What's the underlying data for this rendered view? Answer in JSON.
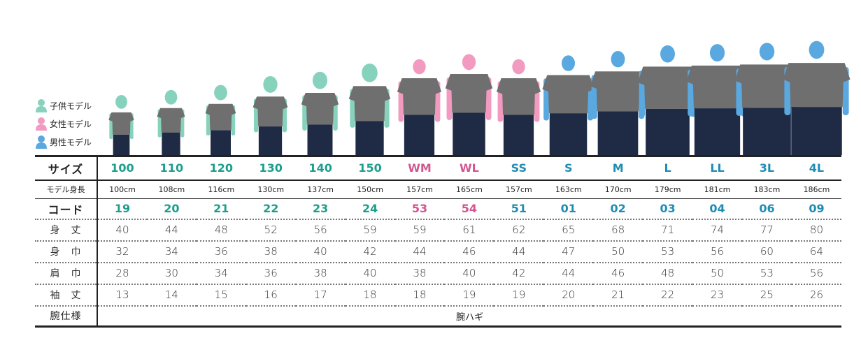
{
  "colors": {
    "kid": "#1d9e8c",
    "woman": "#d3558f",
    "man": "#1f8db3",
    "kid_figure": "#86d2bd",
    "woman_figure": "#f29ac0",
    "man_figure": "#5aa8e0",
    "shirt": "#6f6f6f",
    "pants": "#1f2a44"
  },
  "legend": [
    {
      "label": "子供モデル",
      "type": "kid",
      "icon": "person-icon"
    },
    {
      "label": "女性モデル",
      "type": "woman",
      "icon": "person-icon"
    },
    {
      "label": "男性モデル",
      "type": "man",
      "icon": "person-icon"
    }
  ],
  "row_labels": {
    "size": "サイズ",
    "height": "モデル身長",
    "code": "コード",
    "length": "身　丈",
    "width": "身　巾",
    "shoulder": "肩　巾",
    "sleeve": "袖　丈",
    "arm": "腕仕様"
  },
  "arm_spec": "腕ハギ",
  "sizes": [
    {
      "size": "100",
      "type": "kid",
      "height": "100cm",
      "code": "19",
      "length": "40",
      "width": "32",
      "shoulder": "28",
      "sleeve": "13"
    },
    {
      "size": "110",
      "type": "kid",
      "height": "108cm",
      "code": "20",
      "length": "44",
      "width": "34",
      "shoulder": "30",
      "sleeve": "14"
    },
    {
      "size": "120",
      "type": "kid",
      "height": "116cm",
      "code": "21",
      "length": "48",
      "width": "36",
      "shoulder": "34",
      "sleeve": "15"
    },
    {
      "size": "130",
      "type": "kid",
      "height": "130cm",
      "code": "22",
      "length": "52",
      "width": "38",
      "shoulder": "36",
      "sleeve": "16"
    },
    {
      "size": "140",
      "type": "kid",
      "height": "137cm",
      "code": "23",
      "length": "56",
      "width": "40",
      "shoulder": "38",
      "sleeve": "17"
    },
    {
      "size": "150",
      "type": "kid",
      "height": "150cm",
      "code": "24",
      "length": "59",
      "width": "42",
      "shoulder": "40",
      "sleeve": "18"
    },
    {
      "size": "WM",
      "type": "woman",
      "height": "157cm",
      "code": "53",
      "length": "59",
      "width": "44",
      "shoulder": "38",
      "sleeve": "18"
    },
    {
      "size": "WL",
      "type": "woman",
      "height": "165cm",
      "code": "54",
      "length": "61",
      "width": "46",
      "shoulder": "40",
      "sleeve": "19"
    },
    {
      "size": "SS",
      "type": "woman",
      "height": "157cm",
      "code": "51",
      "length": "62",
      "width": "44",
      "shoulder": "42",
      "sleeve": "19"
    },
    {
      "size": "S",
      "type": "man",
      "height": "163cm",
      "code": "01",
      "length": "65",
      "width": "47",
      "shoulder": "44",
      "sleeve": "20"
    },
    {
      "size": "M",
      "type": "man",
      "height": "170cm",
      "code": "02",
      "length": "68",
      "width": "50",
      "shoulder": "46",
      "sleeve": "21"
    },
    {
      "size": "L",
      "type": "man",
      "height": "179cm",
      "code": "03",
      "length": "71",
      "width": "53",
      "shoulder": "48",
      "sleeve": "22"
    },
    {
      "size": "LL",
      "type": "man",
      "height": "181cm",
      "code": "04",
      "length": "74",
      "width": "56",
      "shoulder": "50",
      "sleeve": "23"
    },
    {
      "size": "3L",
      "type": "man",
      "height": "183cm",
      "code": "06",
      "length": "77",
      "width": "60",
      "shoulder": "53",
      "sleeve": "25"
    },
    {
      "size": "4L",
      "type": "man",
      "height": "186cm",
      "code": "09",
      "length": "80",
      "width": "64",
      "shoulder": "56",
      "sleeve": "26"
    }
  ]
}
